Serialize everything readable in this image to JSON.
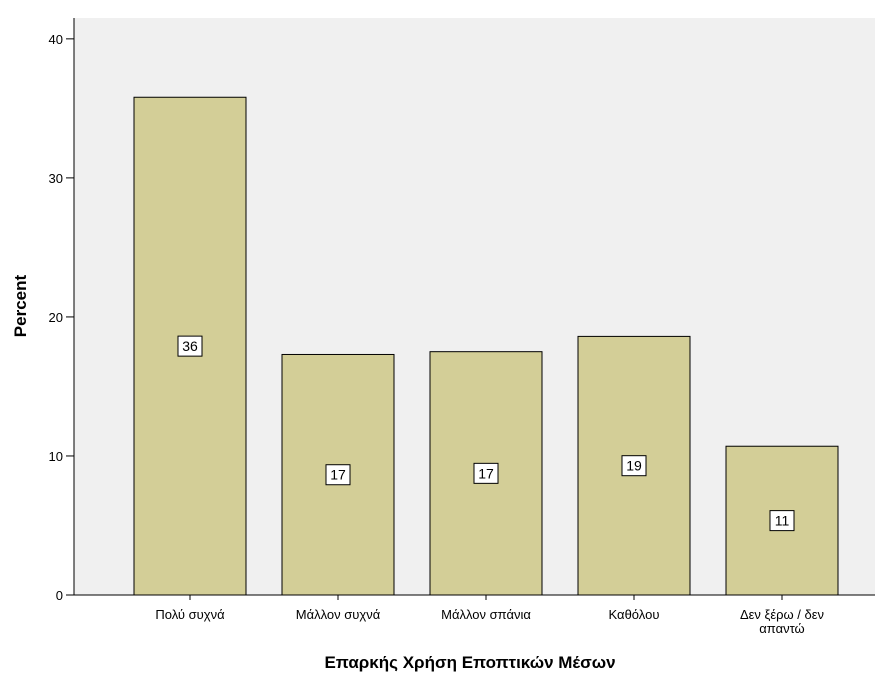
{
  "chart_data": {
    "type": "bar",
    "categories": [
      [
        "Πολύ συχνά"
      ],
      [
        "Μάλλον συχνά"
      ],
      [
        "Μάλλον σπάνια"
      ],
      [
        "Καθόλου"
      ],
      [
        "Δεν ξέρω / δεν",
        "απαντώ"
      ]
    ],
    "values": [
      35.8,
      17.3,
      17.5,
      18.6,
      10.7
    ],
    "data_labels": [
      "36",
      "17",
      "17",
      "19",
      "11"
    ],
    "xlabel": "Επαρκής Χρήση Εποπτικών Μέσων",
    "ylabel": "Percent",
    "ylim": [
      0,
      41.5
    ],
    "yticks": [
      0,
      10,
      20,
      30,
      40
    ],
    "grid": false,
    "colors": {
      "plot_background": "#f0f0f0",
      "bar_fill": "#d3ce97",
      "bar_stroke": "#000000",
      "axis": "#000000"
    }
  }
}
